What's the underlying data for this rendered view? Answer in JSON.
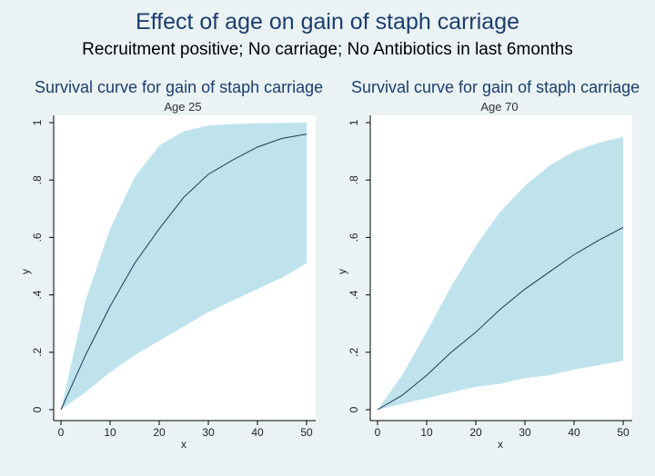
{
  "title": "Effect of age on gain of staph carriage",
  "subtitle": "Recruitment positive; No carriage; No Antibiotics in last 6months",
  "colors": {
    "background": "#eaf2f3",
    "plot_region": "#ffffff",
    "ci_band": "#bfe3ec",
    "line": "#1f3650",
    "title": "#1b3e6e"
  },
  "chart_data": [
    {
      "type": "area",
      "title": "Survival curve for gain of staph carriage",
      "subtitle": "Age 25",
      "xlabel": "x",
      "ylabel": "y",
      "xlim": [
        0,
        50
      ],
      "ylim": [
        0,
        1
      ],
      "xticks": [
        0,
        10,
        20,
        30,
        40,
        50
      ],
      "yticks": [
        0,
        0.2,
        0.4,
        0.6,
        0.8,
        1
      ],
      "ytick_labels": [
        "0",
        ".2",
        ".4",
        ".6",
        ".8",
        "1"
      ],
      "grid": false,
      "x": [
        0,
        5,
        10,
        15,
        20,
        25,
        30,
        35,
        40,
        45,
        50
      ],
      "estimate": [
        0,
        0.19,
        0.36,
        0.51,
        0.63,
        0.74,
        0.82,
        0.87,
        0.915,
        0.945,
        0.96
      ],
      "lower": [
        0,
        0.06,
        0.13,
        0.19,
        0.24,
        0.29,
        0.34,
        0.38,
        0.42,
        0.46,
        0.51
      ],
      "upper": [
        0,
        0.38,
        0.63,
        0.81,
        0.92,
        0.97,
        0.99,
        0.995,
        0.998,
        0.999,
        1.0
      ]
    },
    {
      "type": "area",
      "title": "Survival curve for gain of staph carriage",
      "subtitle": "Age 70",
      "xlabel": "x",
      "ylabel": "y",
      "xlim": [
        0,
        50
      ],
      "ylim": [
        0,
        1
      ],
      "xticks": [
        0,
        10,
        20,
        30,
        40,
        50
      ],
      "yticks": [
        0,
        0.2,
        0.4,
        0.6,
        0.8,
        1
      ],
      "ytick_labels": [
        "0",
        ".2",
        ".4",
        ".6",
        ".8",
        "1"
      ],
      "grid": false,
      "x": [
        0,
        5,
        10,
        15,
        20,
        25,
        30,
        35,
        40,
        45,
        50
      ],
      "estimate": [
        0,
        0.05,
        0.12,
        0.2,
        0.27,
        0.35,
        0.42,
        0.48,
        0.54,
        0.59,
        0.635
      ],
      "lower": [
        0,
        0.02,
        0.04,
        0.06,
        0.08,
        0.09,
        0.11,
        0.12,
        0.14,
        0.155,
        0.17
      ],
      "upper": [
        0,
        0.12,
        0.27,
        0.43,
        0.57,
        0.69,
        0.78,
        0.85,
        0.9,
        0.93,
        0.95
      ]
    }
  ]
}
